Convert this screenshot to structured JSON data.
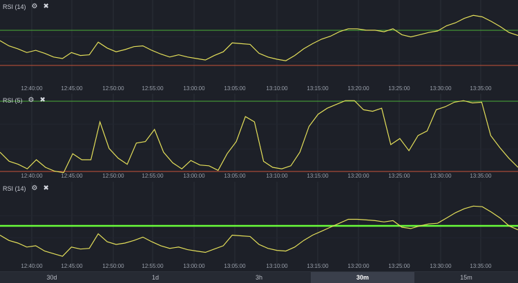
{
  "colors": {
    "background": "#1d2028",
    "grid": "#2b2f39",
    "line": "#e5e05a",
    "upper_level": "#4caf38",
    "upper_level_bright": "#6aff3a",
    "lower_level": "#c9543a"
  },
  "time_axis": [
    "12:40:00",
    "12:45:00",
    "12:50:00",
    "12:55:00",
    "13:00:00",
    "13:05:00",
    "13:10:00",
    "13:15:00",
    "13:20:00",
    "13:25:00",
    "13:30:00",
    "13:35:00"
  ],
  "panes": [
    {
      "label": "RSI (14)",
      "settings_icon": "gear-icon",
      "close_icon": "close-icon",
      "series": [
        62,
        55,
        51,
        46,
        49,
        45,
        40,
        38,
        46,
        42,
        43,
        60,
        52,
        47,
        50,
        54,
        55,
        49,
        44,
        40,
        43,
        40,
        38,
        36,
        42,
        47,
        59,
        58,
        57,
        45,
        40,
        37,
        35,
        42,
        51,
        58,
        64,
        68,
        74,
        78,
        78,
        76,
        76,
        74,
        78,
        70,
        67,
        70,
        73,
        75,
        82,
        86,
        92,
        96,
        94,
        88,
        81,
        73,
        69
      ]
    },
    {
      "label": "RSI (5)",
      "settings_icon": "gear-icon",
      "close_icon": "close-icon",
      "series": [
        30,
        18,
        14,
        8,
        20,
        10,
        5,
        3,
        28,
        20,
        20,
        70,
        35,
        22,
        14,
        42,
        44,
        60,
        30,
        16,
        8,
        19,
        13,
        12,
        6,
        28,
        44,
        77,
        70,
        18,
        10,
        8,
        12,
        30,
        64,
        80,
        88,
        93,
        98,
        98,
        86,
        84,
        88,
        40,
        48,
        32,
        52,
        58,
        86,
        90,
        96,
        98,
        95,
        96,
        52,
        36,
        22,
        10
      ]
    },
    {
      "label": "RSI (14)",
      "settings_icon": "gear-icon",
      "close_icon": "close-icon",
      "series": [
        38,
        30,
        26,
        20,
        22,
        14,
        10,
        6,
        20,
        17,
        18,
        40,
        28,
        24,
        26,
        30,
        35,
        28,
        22,
        18,
        20,
        16,
        14,
        12,
        17,
        22,
        38,
        37,
        36,
        24,
        18,
        15,
        14,
        20,
        30,
        38,
        44,
        50,
        56,
        62,
        62,
        61,
        60,
        58,
        60,
        50,
        48,
        52,
        55,
        56,
        64,
        72,
        78,
        82,
        81,
        73,
        64,
        52,
        46
      ]
    }
  ],
  "timeframes": [
    {
      "label": "30d",
      "active": false
    },
    {
      "label": "1d",
      "active": false
    },
    {
      "label": "3h",
      "active": false
    },
    {
      "label": "30m",
      "active": true
    },
    {
      "label": "15m",
      "active": false
    }
  ]
}
